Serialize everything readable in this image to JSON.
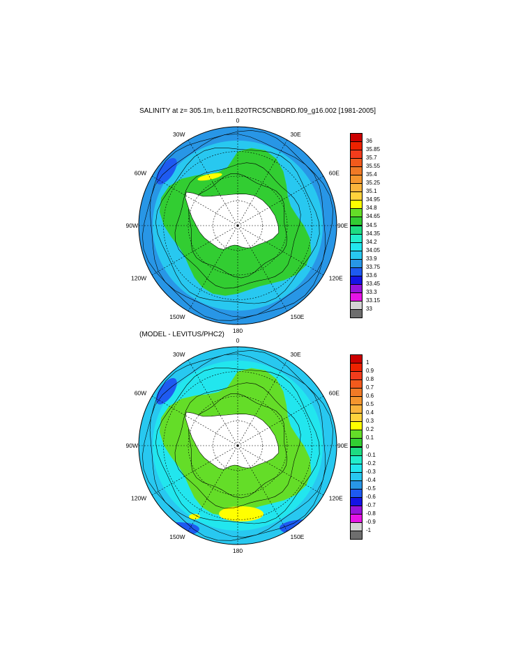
{
  "maps": [
    {
      "title": "SALINITY at z= 305.1m, b.e11.B20TRC5CNBDRD.f09_g16.002 [1981-2005]",
      "lon_labels": [
        "0",
        "30E",
        "60E",
        "90E",
        "120E",
        "150E",
        "180",
        "150W",
        "120W",
        "90W",
        "60W",
        "30W"
      ],
      "legend": {
        "ticks": [
          "36",
          "35.85",
          "35.7",
          "35.55",
          "35.4",
          "35.25",
          "35.1",
          "34.95",
          "34.8",
          "34.65",
          "34.5",
          "34.35",
          "34.2",
          "34.05",
          "33.9",
          "33.75",
          "33.6",
          "33.45",
          "33.3",
          "33.15",
          "33"
        ],
        "colors": [
          "#cc0000",
          "#ee2200",
          "#f23c1c",
          "#f25a1c",
          "#f07a26",
          "#f5962e",
          "#fab43c",
          "#ffd23c",
          "#ffff00",
          "#64dd28",
          "#32cd32",
          "#1edc82",
          "#22eecc",
          "#22e6ee",
          "#28c8f0",
          "#2896e6",
          "#1e5af0",
          "#1414e6",
          "#9614dc",
          "#e614e6",
          "#d2d2d2",
          "#6e6e6e"
        ]
      },
      "field": {
        "open_ocean": "#2896e6",
        "mid_ocean": "#28c8f0",
        "circumpolar": "#32cd32",
        "peak_patch": "#ffff00",
        "coastal_low": "#1e5af0"
      }
    },
    {
      "title": "(MODEL - LEVITUS/PHC2)",
      "lon_labels": [
        "0",
        "30E",
        "60E",
        "90E",
        "120E",
        "150E",
        "180",
        "150W",
        "120W",
        "90W",
        "60W",
        "30W"
      ],
      "legend": {
        "ticks": [
          "1",
          "0.9",
          "0.8",
          "0.7",
          "0.6",
          "0.5",
          "0.4",
          "0.3",
          "0.2",
          "0.1",
          "0",
          "-0.1",
          "-0.2",
          "-0.3",
          "-0.4",
          "-0.5",
          "-0.6",
          "-0.7",
          "-0.8",
          "-0.9",
          "-1"
        ],
        "colors": [
          "#cc0000",
          "#ee2200",
          "#f23c1c",
          "#f25a1c",
          "#f07a26",
          "#f5962e",
          "#fab43c",
          "#ffd23c",
          "#ffff00",
          "#64dd28",
          "#32cd32",
          "#1edc82",
          "#22eecc",
          "#22e6ee",
          "#28c8f0",
          "#2896e6",
          "#1e5af0",
          "#1414e6",
          "#9614dc",
          "#e614e6",
          "#d2d2d2",
          "#6e6e6e"
        ]
      },
      "field": {
        "open_ocean": "#28c8f0",
        "mid_ocean": "#22e6ee",
        "circumpolar": "#64dd28",
        "peak_patch": "#ffff00",
        "coastal_low": "#1e5af0"
      }
    }
  ]
}
